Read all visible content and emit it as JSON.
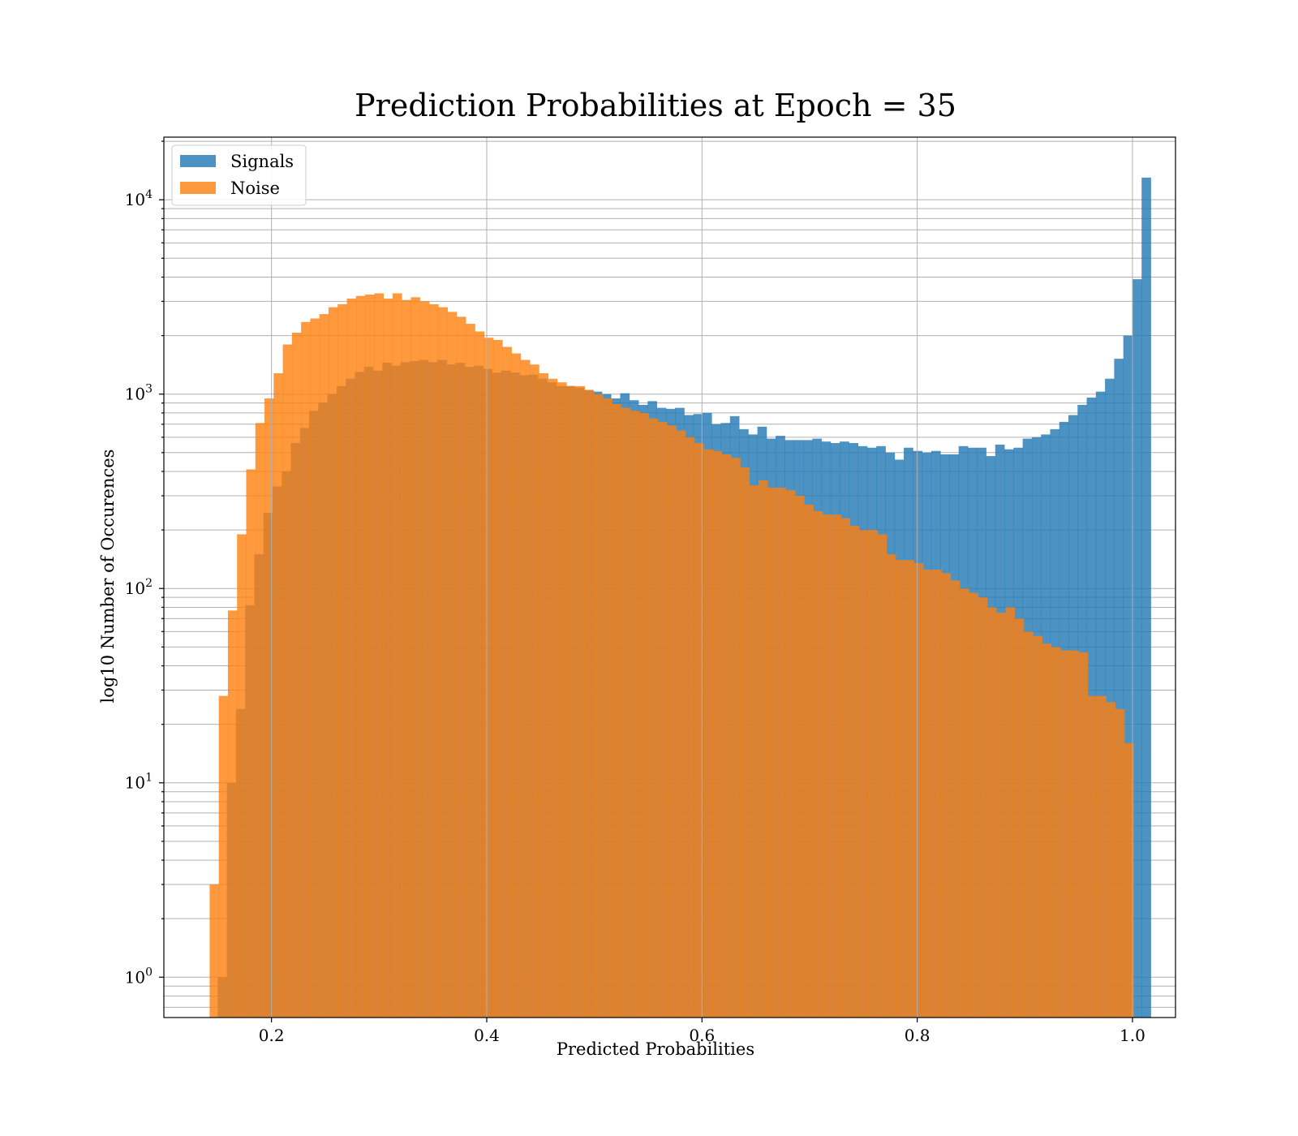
{
  "chart_data": {
    "type": "bar",
    "title": "Prediction Probabilities at Epoch = 35",
    "xlabel": "Predicted Probabilities",
    "ylabel": "log10 Number of Occurences",
    "xlim": [
      0.1,
      1.04
    ],
    "ylim": [
      0.62,
      21000
    ],
    "yscale": "log",
    "grid": true,
    "legend_position": "top-left",
    "x_ticks": [
      {
        "value": 0.2,
        "label": "0.2"
      },
      {
        "value": 0.4,
        "label": "0.4"
      },
      {
        "value": 0.6,
        "label": "0.6"
      },
      {
        "value": 0.8,
        "label": "0.8"
      },
      {
        "value": 1.0,
        "label": "1.0"
      }
    ],
    "y_ticks": [
      {
        "value": 1,
        "label": "10",
        "exp": "0"
      },
      {
        "value": 10,
        "label": "10",
        "exp": "1"
      },
      {
        "value": 100,
        "label": "10",
        "exp": "2"
      },
      {
        "value": 1000,
        "label": "10",
        "exp": "3"
      },
      {
        "value": 10000,
        "label": "10",
        "exp": "4"
      }
    ],
    "series": [
      {
        "name": "Signals",
        "color": "#1f77b4",
        "opacity": 0.8,
        "bin_start": 0.15,
        "bin_width": 0.0085,
        "values": [
          1,
          10,
          24,
          82,
          150,
          245,
          335,
          400,
          560,
          670,
          820,
          905,
          1000,
          1100,
          1200,
          1300,
          1380,
          1320,
          1450,
          1400,
          1460,
          1480,
          1500,
          1460,
          1500,
          1420,
          1450,
          1380,
          1400,
          1350,
          1290,
          1320,
          1290,
          1250,
          1260,
          1200,
          1150,
          1100,
          1100,
          1080,
          1050,
          1030,
          1000,
          950,
          1010,
          930,
          880,
          920,
          850,
          840,
          850,
          780,
          790,
          800,
          700,
          710,
          770,
          660,
          620,
          680,
          590,
          610,
          580,
          580,
          580,
          590,
          570,
          560,
          570,
          560,
          540,
          530,
          540,
          500,
          460,
          530,
          510,
          500,
          510,
          490,
          490,
          540,
          530,
          530,
          480,
          550,
          520,
          530,
          590,
          600,
          620,
          660,
          720,
          780,
          880,
          960,
          1030,
          1200,
          1520,
          2000,
          3900,
          13000
        ]
      },
      {
        "name": "Noise",
        "color": "#ff7f0e",
        "opacity": 0.8,
        "bin_start": 0.1425,
        "bin_width": 0.0085,
        "values": [
          3,
          28,
          77,
          190,
          410,
          710,
          950,
          1280,
          1800,
          2070,
          2350,
          2450,
          2580,
          2800,
          2900,
          3100,
          3200,
          3250,
          3300,
          3100,
          3300,
          3050,
          3150,
          3000,
          2900,
          2800,
          2650,
          2500,
          2300,
          2100,
          1950,
          1900,
          1750,
          1620,
          1500,
          1420,
          1280,
          1200,
          1150,
          1100,
          1100,
          1050,
          1000,
          950,
          890,
          850,
          820,
          800,
          750,
          720,
          690,
          650,
          600,
          560,
          520,
          510,
          490,
          470,
          420,
          340,
          360,
          330,
          330,
          320,
          300,
          270,
          250,
          240,
          240,
          230,
          210,
          200,
          200,
          190,
          150,
          140,
          140,
          135,
          125,
          125,
          120,
          110,
          100,
          95,
          90,
          80,
          75,
          80,
          70,
          60,
          57,
          52,
          50,
          48,
          48,
          47,
          28,
          28,
          26,
          24,
          16
        ]
      }
    ]
  }
}
